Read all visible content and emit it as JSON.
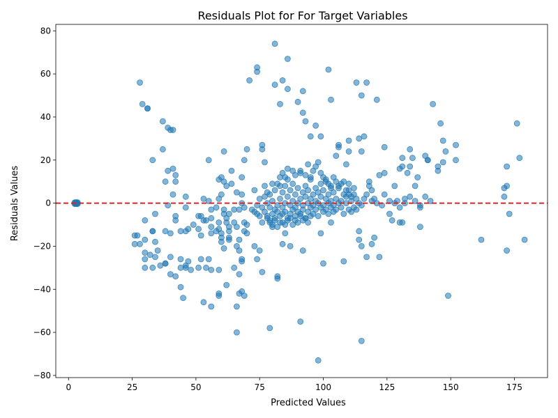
{
  "chart_data": {
    "type": "scatter",
    "title": "Residuals Plot for For Target Variables",
    "xlabel": "Predicted Values",
    "ylabel": "Residuals Values",
    "xlim": [
      -5,
      188
    ],
    "ylim": [
      -81,
      83
    ],
    "xticks": [
      0,
      25,
      50,
      75,
      100,
      125,
      150,
      175
    ],
    "yticks": [
      -80,
      -60,
      -40,
      -20,
      0,
      20,
      40,
      60,
      80
    ],
    "grid": false,
    "legend": "none",
    "colors": {
      "points": "#1f77b4",
      "reference_line": "#d62728"
    },
    "reference_line": {
      "y": 0,
      "style": "dashed"
    },
    "cluster_at_zero": {
      "x": 3,
      "y": 0,
      "count": 10
    },
    "points": [
      [
        28,
        56
      ],
      [
        29,
        46
      ],
      [
        31,
        44
      ],
      [
        31,
        44
      ],
      [
        33,
        20
      ],
      [
        37,
        38
      ],
      [
        37,
        25
      ],
      [
        38,
        10
      ],
      [
        39,
        15
      ],
      [
        39,
        35
      ],
      [
        40,
        34
      ],
      [
        41,
        34
      ],
      [
        41,
        16
      ],
      [
        42,
        13
      ],
      [
        42,
        10
      ],
      [
        41,
        4
      ],
      [
        39,
        -1
      ],
      [
        34,
        -5
      ],
      [
        30,
        -8
      ],
      [
        26,
        -15
      ],
      [
        27,
        -15
      ],
      [
        26,
        -19
      ],
      [
        28,
        -19
      ],
      [
        30,
        -17
      ],
      [
        33,
        -13
      ],
      [
        33,
        -13
      ],
      [
        34,
        -18
      ],
      [
        35,
        -22
      ],
      [
        38,
        -13
      ],
      [
        40,
        -14
      ],
      [
        30,
        -23
      ],
      [
        30,
        -26
      ],
      [
        32,
        -24
      ],
      [
        34,
        -25
      ],
      [
        30,
        -30
      ],
      [
        33,
        -30
      ],
      [
        36,
        -29
      ],
      [
        38,
        -28
      ],
      [
        38,
        -28
      ],
      [
        40,
        -25
      ],
      [
        42,
        -34
      ],
      [
        44,
        -26
      ],
      [
        44,
        -30
      ],
      [
        46,
        -29
      ],
      [
        47,
        -27
      ],
      [
        40,
        -33
      ],
      [
        44,
        -39
      ],
      [
        45,
        -44
      ],
      [
        48,
        -31
      ],
      [
        46,
        -30
      ],
      [
        42,
        -6
      ],
      [
        42,
        -8
      ],
      [
        44,
        -13
      ],
      [
        46,
        -13
      ],
      [
        47,
        -12
      ],
      [
        46,
        -2
      ],
      [
        46,
        3
      ],
      [
        49,
        -10
      ],
      [
        51,
        -6
      ],
      [
        51,
        -12
      ],
      [
        52,
        -6
      ],
      [
        52,
        -15
      ],
      [
        53,
        -8
      ],
      [
        54,
        -8
      ],
      [
        53,
        2
      ],
      [
        55,
        1
      ],
      [
        55,
        20
      ],
      [
        56,
        -3
      ],
      [
        56,
        -7
      ],
      [
        56,
        -11
      ],
      [
        56,
        -14
      ],
      [
        58,
        -2
      ],
      [
        58,
        -13
      ],
      [
        59,
        -9
      ],
      [
        59,
        -12
      ],
      [
        59,
        11
      ],
      [
        59,
        2
      ],
      [
        60,
        4
      ],
      [
        60,
        12
      ],
      [
        61,
        -3
      ],
      [
        61,
        -5
      ],
      [
        61,
        10
      ],
      [
        62,
        -7
      ],
      [
        62,
        -9
      ],
      [
        62,
        8
      ],
      [
        63,
        -5
      ],
      [
        63,
        -11
      ],
      [
        63,
        -13
      ],
      [
        64,
        15
      ],
      [
        64,
        9
      ],
      [
        65,
        -3
      ],
      [
        65,
        -9
      ],
      [
        66,
        5
      ],
      [
        66,
        -11
      ],
      [
        66,
        -20
      ],
      [
        67,
        -3
      ],
      [
        67,
        -17
      ],
      [
        67,
        -22
      ],
      [
        68,
        4
      ],
      [
        68,
        0
      ],
      [
        68,
        12
      ],
      [
        68,
        -26
      ],
      [
        69,
        -2
      ],
      [
        69,
        -9
      ],
      [
        69,
        20
      ],
      [
        69,
        -13
      ],
      [
        70,
        -10
      ],
      [
        70,
        -14
      ],
      [
        70,
        25
      ],
      [
        51,
        -30
      ],
      [
        52,
        -26
      ],
      [
        53,
        -46
      ],
      [
        54,
        -30
      ],
      [
        55,
        -26
      ],
      [
        56,
        -31
      ],
      [
        56,
        -48
      ],
      [
        59,
        -42
      ],
      [
        59,
        -43
      ],
      [
        59,
        -31
      ],
      [
        60,
        -18
      ],
      [
        61,
        -21
      ],
      [
        62,
        -38
      ],
      [
        63,
        -17
      ],
      [
        63,
        -16
      ],
      [
        65,
        -30
      ],
      [
        66,
        -60
      ],
      [
        66,
        -48
      ],
      [
        67,
        -42
      ],
      [
        67,
        -33
      ],
      [
        68,
        -41
      ],
      [
        68,
        -27
      ],
      [
        69,
        -43
      ],
      [
        60,
        -16
      ],
      [
        60,
        -14
      ],
      [
        61,
        24
      ],
      [
        71,
        57
      ],
      [
        73,
        -20
      ],
      [
        73,
        6
      ],
      [
        74,
        -26
      ],
      [
        74,
        63
      ],
      [
        74,
        61
      ],
      [
        75,
        -22
      ],
      [
        76,
        -32
      ],
      [
        76,
        27
      ],
      [
        76,
        25
      ],
      [
        77,
        19
      ],
      [
        79,
        -58
      ],
      [
        81,
        74
      ],
      [
        81,
        55
      ],
      [
        82,
        -35
      ],
      [
        82,
        -34
      ],
      [
        83,
        46
      ],
      [
        84,
        57
      ],
      [
        84,
        -19
      ],
      [
        85,
        -14
      ],
      [
        86,
        67
      ],
      [
        86,
        53
      ],
      [
        87,
        -20
      ],
      [
        90,
        47
      ],
      [
        91,
        -55
      ],
      [
        92,
        -22
      ],
      [
        92,
        52
      ],
      [
        92,
        42
      ],
      [
        93,
        38
      ],
      [
        95,
        31
      ],
      [
        97,
        36
      ],
      [
        98,
        -73
      ],
      [
        99,
        31
      ],
      [
        99,
        -14
      ],
      [
        100,
        -28
      ],
      [
        102,
        62
      ],
      [
        103,
        -9
      ],
      [
        103,
        48
      ],
      [
        105,
        22
      ],
      [
        106,
        27
      ],
      [
        106,
        26
      ],
      [
        108,
        -27
      ],
      [
        109,
        18
      ],
      [
        110,
        9
      ],
      [
        110,
        29
      ],
      [
        110,
        24
      ],
      [
        113,
        56
      ],
      [
        114,
        -13
      ],
      [
        114,
        -17
      ],
      [
        114,
        30
      ],
      [
        115,
        50
      ],
      [
        115,
        24
      ],
      [
        115,
        -64
      ],
      [
        115,
        -20
      ],
      [
        116,
        31
      ],
      [
        117,
        56
      ],
      [
        117,
        -25
      ],
      [
        118,
        10
      ],
      [
        119,
        -19
      ],
      [
        119,
        6
      ],
      [
        120,
        -16
      ],
      [
        121,
        48
      ],
      [
        122,
        13
      ],
      [
        122,
        -25
      ],
      [
        124,
        26
      ],
      [
        124,
        14
      ],
      [
        126,
        -5
      ],
      [
        127,
        -8
      ],
      [
        128,
        8
      ],
      [
        130,
        -9
      ],
      [
        130,
        16
      ],
      [
        131,
        21
      ],
      [
        131,
        17
      ],
      [
        131,
        -9
      ],
      [
        132,
        2
      ],
      [
        133,
        14
      ],
      [
        134,
        25
      ],
      [
        134,
        17
      ],
      [
        135,
        21
      ],
      [
        136,
        8
      ],
      [
        137,
        12
      ],
      [
        138,
        -11
      ],
      [
        138,
        -2
      ],
      [
        140,
        22
      ],
      [
        141,
        20
      ],
      [
        141,
        20
      ],
      [
        143,
        46
      ],
      [
        145,
        15
      ],
      [
        145,
        17
      ],
      [
        146,
        37
      ],
      [
        147,
        29
      ],
      [
        147,
        19
      ],
      [
        148,
        24
      ],
      [
        149,
        -43
      ],
      [
        152,
        27
      ],
      [
        152,
        20
      ],
      [
        162,
        -17
      ],
      [
        171,
        7
      ],
      [
        171,
        3
      ],
      [
        172,
        17
      ],
      [
        172,
        -22
      ],
      [
        172,
        8
      ],
      [
        173,
        -5
      ],
      [
        176,
        37
      ],
      [
        177,
        21
      ],
      [
        179,
        -17
      ],
      [
        72,
        -3
      ],
      [
        73,
        -4
      ],
      [
        74,
        -1
      ],
      [
        74,
        -5
      ],
      [
        75,
        2
      ],
      [
        75,
        -6
      ],
      [
        76,
        -2
      ],
      [
        76,
        -9
      ],
      [
        77,
        3
      ],
      [
        77,
        -4
      ],
      [
        78,
        0
      ],
      [
        78,
        -7
      ],
      [
        79,
        -2
      ],
      [
        79,
        4
      ],
      [
        80,
        -5
      ],
      [
        80,
        1
      ],
      [
        80,
        -10
      ],
      [
        81,
        -3
      ],
      [
        81,
        6
      ],
      [
        81,
        -8
      ],
      [
        82,
        -1
      ],
      [
        82,
        9
      ],
      [
        82,
        -4
      ],
      [
        83,
        2
      ],
      [
        83,
        -6
      ],
      [
        83,
        12
      ],
      [
        84,
        -2
      ],
      [
        84,
        5
      ],
      [
        84,
        -9
      ],
      [
        85,
        0
      ],
      [
        85,
        8
      ],
      [
        85,
        -4
      ],
      [
        86,
        3
      ],
      [
        86,
        -7
      ],
      [
        86,
        11
      ],
      [
        87,
        -1
      ],
      [
        87,
        6
      ],
      [
        87,
        -5
      ],
      [
        88,
        1
      ],
      [
        88,
        -3
      ],
      [
        88,
        9
      ],
      [
        89,
        -2
      ],
      [
        89,
        4
      ],
      [
        89,
        -8
      ],
      [
        90,
        0
      ],
      [
        90,
        7
      ],
      [
        90,
        -4
      ],
      [
        91,
        2
      ],
      [
        91,
        -6
      ],
      [
        91,
        14
      ],
      [
        92,
        -1
      ],
      [
        92,
        5
      ],
      [
        92,
        -3
      ],
      [
        93,
        3
      ],
      [
        93,
        -7
      ],
      [
        93,
        8
      ],
      [
        94,
        0
      ],
      [
        94,
        6
      ],
      [
        94,
        -4
      ],
      [
        95,
        2
      ],
      [
        95,
        -2
      ],
      [
        95,
        11
      ],
      [
        96,
        -1
      ],
      [
        96,
        4
      ],
      [
        96,
        -5
      ],
      [
        97,
        1
      ],
      [
        97,
        7
      ],
      [
        97,
        -3
      ],
      [
        98,
        0
      ],
      [
        98,
        5
      ],
      [
        98,
        -6
      ],
      [
        99,
        3
      ],
      [
        99,
        -2
      ],
      [
        99,
        9
      ],
      [
        100,
        -1
      ],
      [
        100,
        6
      ],
      [
        100,
        -4
      ],
      [
        101,
        2
      ],
      [
        101,
        -3
      ],
      [
        101,
        10
      ],
      [
        102,
        0
      ],
      [
        102,
        4
      ],
      [
        102,
        -5
      ],
      [
        103,
        1
      ],
      [
        103,
        7
      ],
      [
        103,
        -2
      ],
      [
        104,
        -1
      ],
      [
        104,
        5
      ],
      [
        104,
        -4
      ],
      [
        105,
        2
      ],
      [
        105,
        -3
      ],
      [
        106,
        0
      ],
      [
        106,
        8
      ],
      [
        107,
        1
      ],
      [
        107,
        -2
      ],
      [
        108,
        4
      ],
      [
        108,
        -5
      ],
      [
        109,
        0
      ],
      [
        109,
        3
      ],
      [
        110,
        -3
      ],
      [
        110,
        6
      ],
      [
        111,
        1
      ],
      [
        111,
        -4
      ],
      [
        112,
        4
      ],
      [
        112,
        -2
      ],
      [
        113,
        2
      ],
      [
        78,
        -6
      ],
      [
        79,
        -9
      ],
      [
        80,
        -11
      ],
      [
        81,
        -7
      ],
      [
        82,
        -11
      ],
      [
        83,
        -9
      ],
      [
        84,
        -5
      ],
      [
        85,
        -10
      ],
      [
        86,
        -8
      ],
      [
        87,
        -7
      ],
      [
        88,
        -10
      ],
      [
        89,
        -6
      ],
      [
        90,
        -9
      ],
      [
        91,
        -5
      ],
      [
        92,
        -8
      ],
      [
        93,
        -7
      ],
      [
        94,
        -9
      ],
      [
        95,
        -6
      ],
      [
        77,
        8
      ],
      [
        78,
        5
      ],
      [
        79,
        -8
      ],
      [
        80,
        9
      ],
      [
        83,
        8
      ],
      [
        84,
        14
      ],
      [
        85,
        12
      ],
      [
        86,
        16
      ],
      [
        88,
        15
      ],
      [
        89,
        13
      ],
      [
        91,
        15
      ],
      [
        93,
        13
      ],
      [
        94,
        18
      ],
      [
        95,
        12
      ],
      [
        96,
        15
      ],
      [
        97,
        17
      ],
      [
        98,
        19
      ],
      [
        99,
        14
      ],
      [
        100,
        12
      ],
      [
        101,
        11
      ],
      [
        102,
        9
      ],
      [
        103,
        8
      ],
      [
        104,
        12
      ],
      [
        105,
        10
      ],
      [
        106,
        7
      ],
      [
        107,
        9
      ],
      [
        108,
        10
      ],
      [
        109,
        6
      ],
      [
        110,
        4
      ],
      [
        111,
        3
      ],
      [
        112,
        7
      ],
      [
        113,
        -3
      ],
      [
        114,
        0
      ],
      [
        115,
        -1
      ],
      [
        116,
        2
      ],
      [
        117,
        4
      ],
      [
        118,
        8
      ],
      [
        119,
        1
      ],
      [
        120,
        2
      ],
      [
        121,
        0
      ],
      [
        123,
        -1
      ],
      [
        124,
        4
      ],
      [
        126,
        1
      ],
      [
        128,
        0
      ],
      [
        129,
        1
      ],
      [
        130,
        -2
      ],
      [
        132,
        0
      ],
      [
        134,
        3
      ],
      [
        136,
        1
      ],
      [
        138,
        -1
      ],
      [
        140,
        3
      ],
      [
        142,
        1
      ]
    ]
  }
}
